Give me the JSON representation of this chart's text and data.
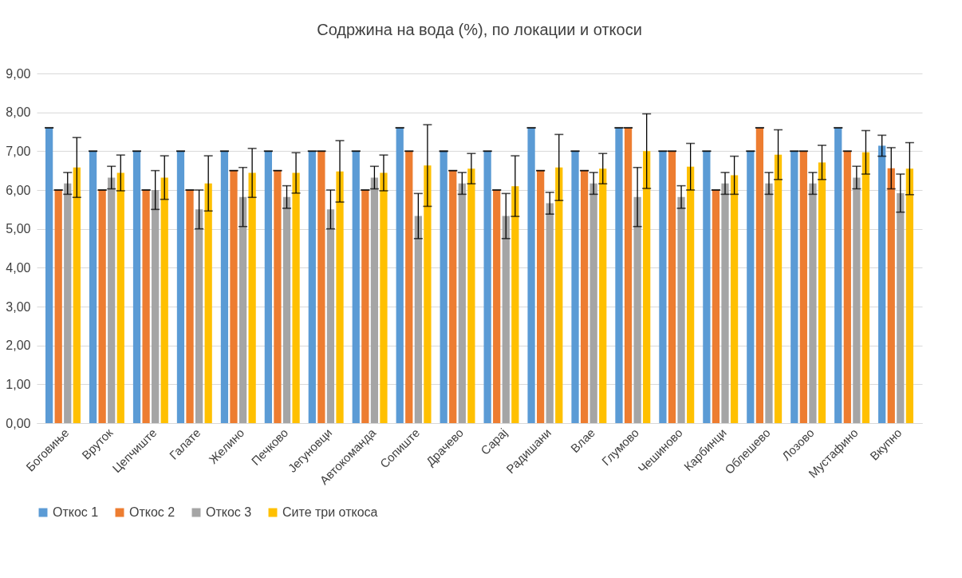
{
  "chart_data": {
    "type": "bar",
    "title": "Содржина на вода (%), по локации и откоси",
    "categories": [
      "Боговиње",
      "Вруток",
      "Цепчиште",
      "Галате",
      "Желино",
      "Печково",
      "Јегуновци",
      "Автокоманда",
      "Сопиште",
      "Драчево",
      "Сарај",
      "Радишани",
      "Влае",
      "Глумово",
      "Чешиново",
      "Карбинци",
      "Облешево",
      "Лозово",
      "Мустафино",
      "Вкупно"
    ],
    "series": [
      {
        "name": "Откос 1",
        "color": "#5b9bd5",
        "values": [
          7.6,
          7,
          7,
          7,
          7,
          7,
          7,
          7,
          7.6,
          7,
          7,
          7.6,
          7,
          7.6,
          7,
          7,
          7,
          7,
          7.6,
          7.14
        ],
        "errors": [
          0,
          0,
          0,
          0,
          0,
          0,
          0,
          0,
          0,
          0,
          0,
          0,
          0,
          0,
          0,
          0,
          0,
          0,
          0,
          0.27
        ]
      },
      {
        "name": "Откос 2",
        "color": "#ed7d31",
        "values": [
          6,
          6,
          6,
          6,
          6.5,
          6.5,
          7,
          6,
          7,
          6.5,
          6,
          6.5,
          6.5,
          7.6,
          7,
          6,
          7.6,
          7,
          7,
          6.56
        ],
        "errors": [
          0,
          0,
          0,
          0,
          0,
          0,
          0,
          0,
          0,
          0,
          0,
          0,
          0,
          0,
          0,
          0,
          0,
          0,
          0,
          0.53
        ]
      },
      {
        "name": "Откос 3",
        "color": "#a5a5a5",
        "values": [
          6.17,
          6.32,
          6,
          5.5,
          5.82,
          5.82,
          5.5,
          6.32,
          5.33,
          6.17,
          5.33,
          5.66,
          6.17,
          5.82,
          5.82,
          6.17,
          6.17,
          6.17,
          6.32,
          5.92
        ],
        "errors": [
          0.28,
          0.29,
          0.5,
          0.5,
          0.76,
          0.29,
          0.5,
          0.29,
          0.58,
          0.28,
          0.58,
          0.28,
          0.28,
          0.76,
          0.29,
          0.28,
          0.28,
          0.28,
          0.29,
          0.49
        ]
      },
      {
        "name": "Сите три откоса",
        "color": "#ffc000",
        "values": [
          6.58,
          6.44,
          6.32,
          6.17,
          6.44,
          6.44,
          6.48,
          6.44,
          6.63,
          6.55,
          6.1,
          6.58,
          6.55,
          7,
          6.6,
          6.38,
          6.91,
          6.71,
          6.97,
          6.55
        ],
        "errors": [
          0.77,
          0.46,
          0.56,
          0.71,
          0.63,
          0.52,
          0.79,
          0.46,
          1.05,
          0.39,
          0.78,
          0.85,
          0.39,
          0.96,
          0.6,
          0.49,
          0.64,
          0.44,
          0.56,
          0.67
        ]
      }
    ],
    "ylim": [
      0,
      9
    ],
    "yticks": [
      {
        "value": 0,
        "label": "0,00"
      },
      {
        "value": 1,
        "label": "1,00"
      },
      {
        "value": 2,
        "label": "2,00"
      },
      {
        "value": 3,
        "label": "3,00"
      },
      {
        "value": 4,
        "label": "4,00"
      },
      {
        "value": 5,
        "label": "5,00"
      },
      {
        "value": 6,
        "label": "6,00"
      },
      {
        "value": 7,
        "label": "7,00"
      },
      {
        "value": 8,
        "label": "8,00"
      },
      {
        "value": 9,
        "label": "9,00"
      }
    ],
    "grid": "y",
    "legend": "bottom"
  }
}
